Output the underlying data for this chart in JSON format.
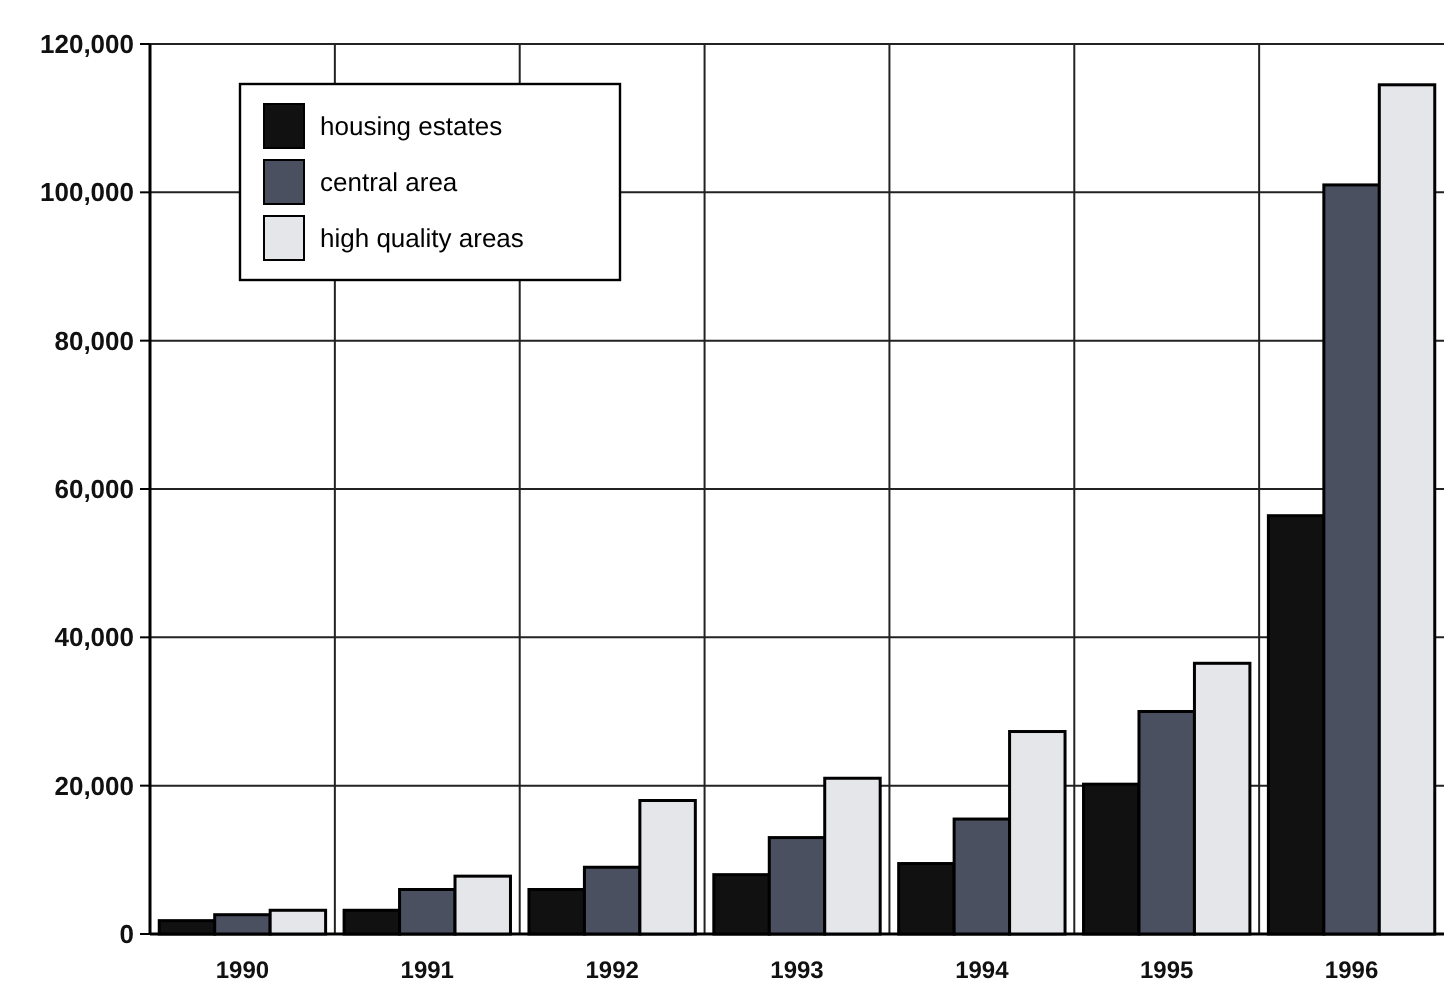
{
  "chart_data": {
    "type": "bar",
    "categories": [
      "1990",
      "1991",
      "1992",
      "1993",
      "1994",
      "1995",
      "1996"
    ],
    "series": [
      {
        "name": "housing estates",
        "color": "#111111",
        "values": [
          1800,
          3200,
          6000,
          8000,
          9500,
          20200,
          56400
        ]
      },
      {
        "name": "central area",
        "color": "#4b5060",
        "values": [
          2600,
          6000,
          9000,
          13000,
          15500,
          30000,
          101000
        ]
      },
      {
        "name": "high quality areas",
        "color": "#e4e6ea",
        "values": [
          3200,
          7800,
          18000,
          21000,
          27300,
          36500,
          114500
        ]
      }
    ],
    "ylim": [
      0,
      120000
    ],
    "yticks": [
      {
        "value": 0,
        "label": "0"
      },
      {
        "value": 20000,
        "label": "20,000"
      },
      {
        "value": 40000,
        "label": "40,000"
      },
      {
        "value": 60000,
        "label": "60,000"
      },
      {
        "value": 80000,
        "label": "80,000"
      },
      {
        "value": 100000,
        "label": "100,000"
      },
      {
        "value": 120000,
        "label": "120,000"
      }
    ],
    "grid": true,
    "legend": "top left"
  }
}
